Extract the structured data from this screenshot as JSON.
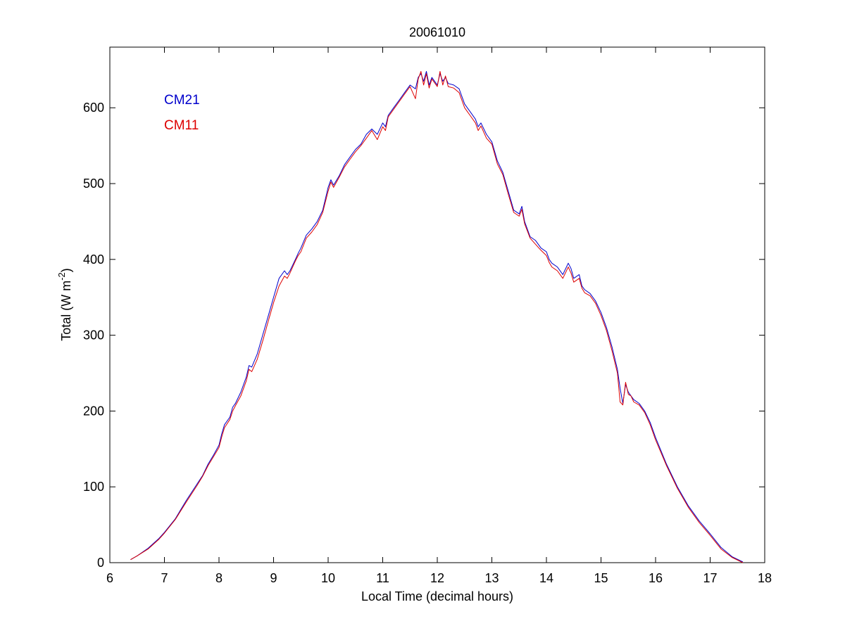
{
  "chart_data": {
    "type": "line",
    "title": "20061010",
    "xlabel": "Local Time (decimal hours)",
    "ylabel": {
      "main": "Total (W m",
      "sup": "-2",
      "close": ")"
    },
    "xlim": [
      6,
      18
    ],
    "ylim": [
      0,
      680
    ],
    "xticks": [
      6,
      7,
      8,
      9,
      10,
      11,
      12,
      13,
      14,
      15,
      16,
      17,
      18
    ],
    "yticks": [
      0,
      100,
      200,
      300,
      400,
      500,
      600
    ],
    "grid": false,
    "legend_position": "top-left",
    "series": [
      {
        "name": "CM21",
        "color": "#0000cc",
        "x": [
          6.38,
          6.5,
          6.7,
          6.9,
          7.0,
          7.2,
          7.4,
          7.6,
          7.7,
          7.8,
          7.9,
          8.0,
          8.05,
          8.1,
          8.2,
          8.25,
          8.3,
          8.4,
          8.5,
          8.55,
          8.6,
          8.7,
          8.8,
          8.9,
          9.0,
          9.1,
          9.2,
          9.25,
          9.3,
          9.4,
          9.45,
          9.5,
          9.6,
          9.7,
          9.8,
          9.9,
          10.0,
          10.05,
          10.1,
          10.2,
          10.3,
          10.4,
          10.5,
          10.6,
          10.7,
          10.8,
          10.9,
          11.0,
          11.05,
          11.1,
          11.2,
          11.3,
          11.4,
          11.5,
          11.6,
          11.65,
          11.7,
          11.75,
          11.8,
          11.85,
          11.9,
          12.0,
          12.05,
          12.1,
          12.15,
          12.2,
          12.3,
          12.4,
          12.5,
          12.55,
          12.6,
          12.7,
          12.75,
          12.8,
          12.9,
          13.0,
          13.1,
          13.2,
          13.3,
          13.4,
          13.5,
          13.55,
          13.6,
          13.7,
          13.8,
          13.9,
          14.0,
          14.05,
          14.1,
          14.2,
          14.3,
          14.4,
          14.45,
          14.5,
          14.6,
          14.65,
          14.7,
          14.8,
          14.9,
          15.0,
          15.1,
          15.2,
          15.3,
          15.35,
          15.4,
          15.45,
          15.5,
          15.55,
          15.6,
          15.7,
          15.8,
          15.9,
          16.0,
          16.2,
          16.4,
          16.6,
          16.8,
          17.0,
          17.2,
          17.4,
          17.6
        ],
        "y": [
          4,
          9,
          19,
          32,
          40,
          58,
          82,
          104,
          115,
          130,
          142,
          155,
          170,
          182,
          192,
          205,
          210,
          225,
          245,
          260,
          258,
          275,
          300,
          325,
          350,
          375,
          385,
          380,
          385,
          400,
          408,
          415,
          432,
          440,
          450,
          465,
          495,
          505,
          498,
          510,
          525,
          535,
          545,
          552,
          565,
          572,
          565,
          580,
          575,
          590,
          600,
          610,
          620,
          630,
          625,
          640,
          645,
          635,
          648,
          630,
          640,
          630,
          645,
          635,
          640,
          632,
          630,
          625,
          605,
          600,
          595,
          585,
          575,
          580,
          565,
          555,
          530,
          515,
          490,
          465,
          460,
          470,
          450,
          430,
          425,
          415,
          410,
          400,
          395,
          390,
          380,
          395,
          388,
          375,
          380,
          365,
          360,
          355,
          345,
          330,
          310,
          285,
          255,
          230,
          210,
          235,
          225,
          220,
          215,
          210,
          200,
          185,
          165,
          130,
          100,
          75,
          55,
          38,
          20,
          8,
          1
        ]
      },
      {
        "name": "CM11",
        "color": "#dd0000",
        "x": [
          6.38,
          6.5,
          6.7,
          6.9,
          7.0,
          7.2,
          7.4,
          7.6,
          7.7,
          7.8,
          7.9,
          8.0,
          8.05,
          8.1,
          8.2,
          8.25,
          8.3,
          8.4,
          8.5,
          8.55,
          8.6,
          8.7,
          8.8,
          8.9,
          9.0,
          9.1,
          9.2,
          9.25,
          9.3,
          9.4,
          9.45,
          9.5,
          9.6,
          9.7,
          9.8,
          9.9,
          10.0,
          10.05,
          10.1,
          10.2,
          10.3,
          10.4,
          10.5,
          10.6,
          10.7,
          10.8,
          10.9,
          11.0,
          11.05,
          11.1,
          11.2,
          11.3,
          11.4,
          11.5,
          11.6,
          11.65,
          11.7,
          11.75,
          11.8,
          11.85,
          11.9,
          12.0,
          12.05,
          12.1,
          12.15,
          12.2,
          12.3,
          12.4,
          12.5,
          12.55,
          12.6,
          12.7,
          12.75,
          12.8,
          12.9,
          13.0,
          13.1,
          13.2,
          13.3,
          13.4,
          13.5,
          13.55,
          13.6,
          13.7,
          13.8,
          13.9,
          14.0,
          14.05,
          14.1,
          14.2,
          14.3,
          14.4,
          14.45,
          14.5,
          14.6,
          14.65,
          14.7,
          14.8,
          14.9,
          15.0,
          15.1,
          15.2,
          15.3,
          15.35,
          15.4,
          15.45,
          15.5,
          15.55,
          15.6,
          15.7,
          15.8,
          15.9,
          16.0,
          16.2,
          16.4,
          16.6,
          16.8,
          17.0,
          17.2,
          17.4,
          17.6
        ],
        "y": [
          4,
          9,
          18,
          31,
          39,
          57,
          80,
          102,
          114,
          128,
          140,
          152,
          166,
          178,
          189,
          200,
          207,
          220,
          240,
          255,
          252,
          268,
          292,
          318,
          343,
          365,
          378,
          375,
          382,
          398,
          405,
          410,
          428,
          436,
          446,
          462,
          490,
          502,
          495,
          508,
          522,
          532,
          542,
          550,
          560,
          570,
          558,
          575,
          570,
          588,
          598,
          608,
          618,
          628,
          612,
          638,
          648,
          630,
          645,
          626,
          638,
          628,
          648,
          630,
          642,
          628,
          626,
          620,
          600,
          595,
          590,
          580,
          570,
          576,
          560,
          552,
          526,
          512,
          486,
          462,
          457,
          466,
          447,
          428,
          420,
          412,
          405,
          396,
          390,
          385,
          375,
          390,
          382,
          370,
          375,
          362,
          356,
          352,
          342,
          326,
          306,
          280,
          250,
          212,
          208,
          238,
          222,
          220,
          212,
          208,
          198,
          182,
          162,
          128,
          98,
          73,
          53,
          36,
          18,
          7,
          0
        ]
      }
    ]
  }
}
